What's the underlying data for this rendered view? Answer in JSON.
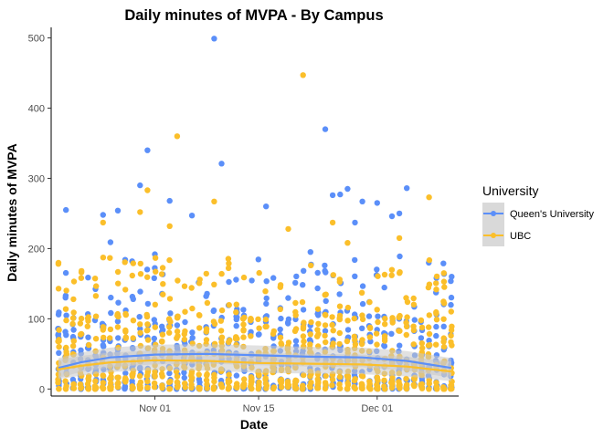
{
  "chart_data": {
    "type": "scatter",
    "title": "Daily minutes of MVPA - By Campus",
    "xlabel": "Date",
    "ylabel": "Daily minutes of MVPA",
    "x_ticks": [
      "Nov 01",
      "Nov 15",
      "Dec 01"
    ],
    "y_ticks": [
      0,
      100,
      200,
      300,
      400,
      500
    ],
    "xlim": [
      "2017-10-18",
      "2017-12-12"
    ],
    "ylim": [
      -10,
      515
    ],
    "grid": false,
    "legend": {
      "title": "University",
      "position": "right"
    },
    "colors": {
      "Queen's University": "#5B8FF9",
      "UBC": "#FBBF2A",
      "smooth_band": "#c8c8c8"
    },
    "series": [
      {
        "name": "Queen's University",
        "color": "#5B8FF9",
        "outliers": [
          [
            "2017-10-19",
            106
          ],
          [
            "2017-10-20",
            255
          ],
          [
            "2017-10-25",
            248
          ],
          [
            "2017-10-26",
            209
          ],
          [
            "2017-10-27",
            254
          ],
          [
            "2017-10-30",
            290
          ],
          [
            "2017-10-31",
            340
          ],
          [
            "2017-11-01",
            192
          ],
          [
            "2017-11-03",
            268
          ],
          [
            "2017-11-06",
            247
          ],
          [
            "2017-11-09",
            499
          ],
          [
            "2017-11-10",
            321
          ],
          [
            "2017-11-16",
            260
          ],
          [
            "2017-11-22",
            195
          ],
          [
            "2017-11-24",
            370
          ],
          [
            "2017-11-25",
            276
          ],
          [
            "2017-11-26",
            277
          ],
          [
            "2017-11-27",
            285
          ],
          [
            "2017-11-28",
            237
          ],
          [
            "2017-11-29",
            267
          ],
          [
            "2017-12-01",
            265
          ],
          [
            "2017-12-03",
            246
          ],
          [
            "2017-12-04",
            250
          ],
          [
            "2017-12-05",
            286
          ],
          [
            "2017-12-09",
            158
          ]
        ],
        "trend": [
          [
            "2017-10-19",
            30
          ],
          [
            "2017-10-22",
            38
          ],
          [
            "2017-10-26",
            45
          ],
          [
            "2017-11-01",
            49
          ],
          [
            "2017-11-08",
            50
          ],
          [
            "2017-11-15",
            48
          ],
          [
            "2017-11-22",
            46
          ],
          [
            "2017-11-29",
            45
          ],
          [
            "2017-12-05",
            40
          ],
          [
            "2017-12-11",
            30
          ]
        ]
      },
      {
        "name": "UBC",
        "color": "#FBBF2A",
        "outliers": [
          [
            "2017-10-19",
            143
          ],
          [
            "2017-10-25",
            237
          ],
          [
            "2017-10-30",
            252
          ],
          [
            "2017-10-31",
            283
          ],
          [
            "2017-11-03",
            232
          ],
          [
            "2017-11-04",
            360
          ],
          [
            "2017-11-09",
            267
          ],
          [
            "2017-11-19",
            228
          ],
          [
            "2017-11-21",
            447
          ],
          [
            "2017-11-25",
            237
          ],
          [
            "2017-11-27",
            208
          ],
          [
            "2017-12-04",
            215
          ],
          [
            "2017-12-08",
            273
          ],
          [
            "2017-12-10",
            165
          ]
        ],
        "trend": [
          [
            "2017-10-19",
            28
          ],
          [
            "2017-10-22",
            33
          ],
          [
            "2017-10-26",
            38
          ],
          [
            "2017-11-01",
            41
          ],
          [
            "2017-11-08",
            40
          ],
          [
            "2017-11-15",
            37
          ],
          [
            "2017-11-22",
            36
          ],
          [
            "2017-11-29",
            35
          ],
          [
            "2017-12-05",
            32
          ],
          [
            "2017-12-11",
            25
          ]
        ]
      }
    ],
    "bulk_note_free": true
  }
}
